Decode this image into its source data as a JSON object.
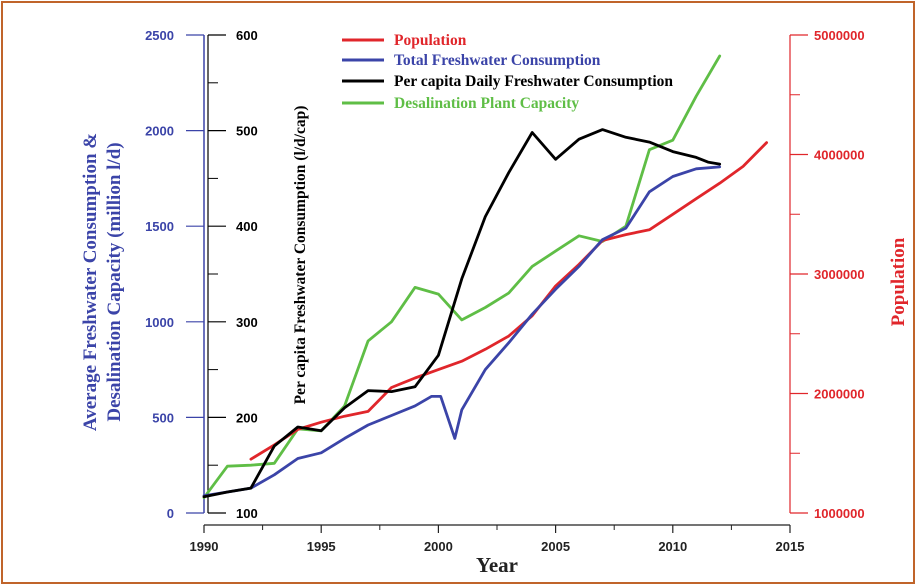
{
  "chart_data": {
    "type": "line",
    "xlabel": "Year",
    "xlim": [
      1990,
      2015
    ],
    "x_ticks": [
      1990,
      1995,
      2000,
      2005,
      2010,
      2015
    ],
    "axes": {
      "left_outer": {
        "label": "Average Freshwater Consumption & Desalination Capacity (million l/d)",
        "label_lines": [
          "Average Freshwater Consumption &",
          "Desalination Capacity (million l/d)"
        ],
        "range": [
          0,
          2500
        ],
        "ticks": [
          0,
          500,
          1000,
          1500,
          2000,
          2500
        ],
        "color": "#3b44a8"
      },
      "left_inner": {
        "label": "Per capita Freshwater Consumption (l/d/cap)",
        "range": [
          100,
          600
        ],
        "ticks": [
          100,
          200,
          300,
          400,
          500,
          600
        ],
        "color": "#000000"
      },
      "right": {
        "label": "Population",
        "range": [
          1000000,
          5000000
        ],
        "ticks": [
          1000000,
          2000000,
          3000000,
          4000000,
          5000000
        ],
        "color": "#e0262b"
      }
    },
    "legend_placement": "top-center",
    "series": [
      {
        "name": "Population",
        "axis": "right",
        "color": "#e0262b",
        "x": [
          1992,
          1993,
          1994,
          1995,
          1996,
          1997,
          1998,
          1999,
          2000,
          2001,
          2002,
          2003,
          2004,
          2005,
          2006,
          2007,
          2008,
          2009,
          2010,
          2011,
          2012,
          2013,
          2014
        ],
        "y": [
          1450000,
          1570000,
          1700000,
          1760000,
          1810000,
          1850000,
          2050000,
          2130000,
          2200000,
          2270000,
          2370000,
          2480000,
          2650000,
          2900000,
          3080000,
          3280000,
          3330000,
          3370000,
          3500000,
          3630000,
          3760000,
          3900000,
          4100000
        ]
      },
      {
        "name": "Total Freshwater Consumption",
        "axis": "left_outer",
        "color": "#3b44a8",
        "x": [
          1990,
          1991,
          1992,
          1993,
          1994,
          1995,
          1996,
          1997,
          1998,
          1999,
          1999.7,
          2000.1,
          2000.7,
          2001,
          2002,
          2003,
          2004,
          2005,
          2006,
          2007,
          2008,
          2009,
          2010,
          2011,
          2012
        ],
        "y": [
          90,
          110,
          130,
          200,
          285,
          315,
          390,
          460,
          510,
          560,
          610,
          610,
          390,
          540,
          750,
          890,
          1040,
          1170,
          1290,
          1430,
          1490,
          1680,
          1760,
          1800,
          1810
        ]
      },
      {
        "name": "Per capita Daily Freshwater Consumption",
        "axis": "left_inner",
        "color": "#000000",
        "x": [
          1990,
          1991,
          1992,
          1993,
          1994,
          1995,
          1996,
          1997,
          1998,
          1999,
          2000,
          2001,
          2002,
          2003,
          2004,
          2005,
          2006,
          2007,
          2008,
          2009,
          2010,
          2011,
          2011.5,
          2012
        ],
        "y": [
          117,
          122,
          126,
          170,
          190,
          186,
          210,
          228,
          227,
          232,
          265,
          345,
          410,
          456,
          498,
          470,
          491,
          501,
          493,
          488,
          478,
          472,
          467,
          465
        ]
      },
      {
        "name": "Desalination Plant Capacity",
        "axis": "left_outer",
        "color": "#5fbe46",
        "x": [
          1990,
          1991,
          1992,
          1993,
          1994,
          1995,
          1996,
          1997,
          1998,
          1999,
          2000,
          2001,
          2002,
          2003,
          2004,
          2005,
          2006,
          2007,
          2008,
          2009,
          2010,
          2011,
          2012
        ],
        "y": [
          80,
          245,
          250,
          260,
          440,
          430,
          560,
          900,
          1000,
          1180,
          1145,
          1010,
          1075,
          1150,
          1290,
          1370,
          1450,
          1420,
          1500,
          1900,
          1950,
          2180,
          2390
        ]
      }
    ]
  }
}
